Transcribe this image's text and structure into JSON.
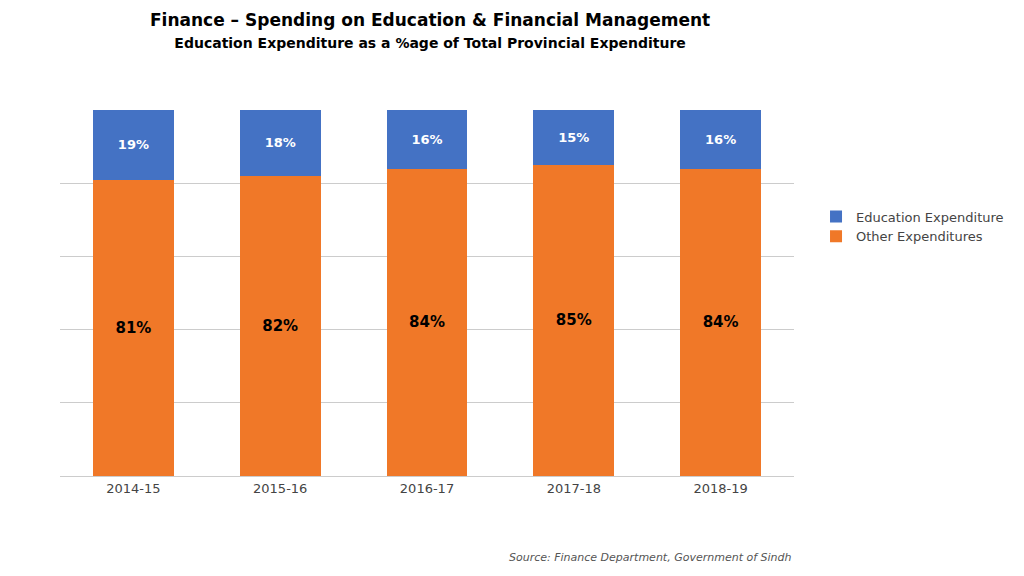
{
  "chart_data": {
    "type": "bar",
    "title": "Finance – Spending on Education & Financial Management",
    "subtitle": "Education Expenditure as a %age of Total Provincial Expenditure",
    "categories": [
      "2014-15",
      "2015-16",
      "2016-17",
      "2017-18",
      "2018-19"
    ],
    "series": [
      {
        "name": "Other Expenditures",
        "color": "#F07828",
        "values": [
          81,
          82,
          84,
          85,
          84
        ],
        "value_labels": [
          "81%",
          "82%",
          "84%",
          "85%",
          "84%"
        ]
      },
      {
        "name": "Education Expenditure",
        "color": "#4472C4",
        "values": [
          19,
          18,
          16,
          15,
          16
        ],
        "value_labels": [
          "19%",
          "18%",
          "16%",
          "15%",
          "16%"
        ]
      }
    ],
    "stacked": true,
    "data_labels": true,
    "ylim": [
      0,
      100
    ],
    "yticks": [
      0,
      20,
      40,
      60,
      80,
      100
    ],
    "grid": true,
    "tick_labels": "x",
    "legend": "right",
    "annotations": [
      {
        "text": "Source: Finance Department, Government of Sindh"
      }
    ]
  }
}
